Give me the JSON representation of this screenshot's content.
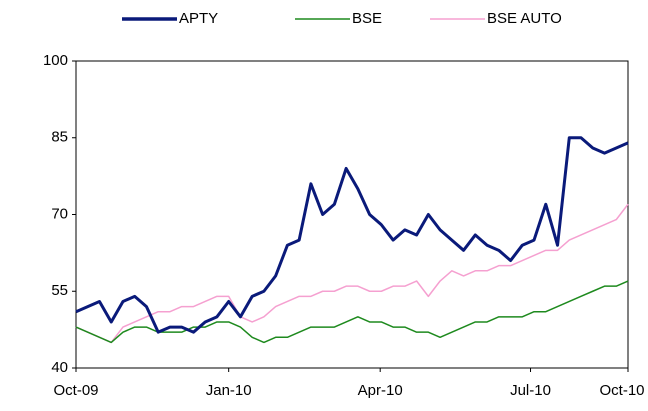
{
  "chart_data": {
    "type": "line",
    "x": [
      0,
      1,
      2,
      3,
      4,
      5,
      6,
      7,
      8,
      9,
      10,
      11,
      12,
      13,
      14,
      15,
      16,
      17,
      18,
      19,
      20,
      21,
      22,
      23,
      24,
      25,
      26,
      27,
      28,
      29,
      30,
      31,
      32,
      33,
      34,
      35,
      36,
      37,
      38,
      39,
      40,
      41,
      42,
      43,
      44,
      45,
      46,
      47
    ],
    "series": [
      {
        "name": "APTY",
        "color": "#0a1a7a",
        "values": [
          51,
          52,
          53,
          49,
          53,
          54,
          52,
          47,
          48,
          48,
          47,
          49,
          50,
          53,
          50,
          54,
          55,
          58,
          64,
          65,
          76,
          70,
          72,
          79,
          75,
          70,
          68,
          65,
          67,
          66,
          70,
          67,
          65,
          63,
          66,
          64,
          63,
          61,
          64,
          65,
          72,
          64,
          85,
          85,
          83,
          82,
          83,
          84
        ]
      },
      {
        "name": "BSE",
        "color": "#1e8a1e",
        "values": [
          48,
          47,
          46,
          45,
          47,
          48,
          48,
          47,
          47,
          47,
          48,
          48,
          49,
          49,
          48,
          46,
          45,
          46,
          46,
          47,
          48,
          48,
          48,
          49,
          50,
          49,
          49,
          48,
          48,
          47,
          47,
          46,
          47,
          48,
          49,
          49,
          50,
          50,
          50,
          51,
          51,
          52,
          53,
          54,
          55,
          56,
          56,
          57
        ]
      },
      {
        "name": "BSE AUTO",
        "color": "#f5a0d0",
        "values": [
          48,
          47,
          46,
          45,
          48,
          49,
          50,
          51,
          51,
          52,
          52,
          53,
          54,
          54,
          50,
          49,
          50,
          52,
          53,
          54,
          54,
          55,
          55,
          56,
          56,
          55,
          55,
          56,
          56,
          57,
          54,
          57,
          59,
          58,
          59,
          59,
          60,
          60,
          61,
          62,
          63,
          63,
          65,
          66,
          67,
          68,
          69,
          72
        ]
      }
    ],
    "xlim": [
      0,
      47
    ],
    "xticks": [
      {
        "value": 0,
        "label": "Oct-09"
      },
      {
        "value": 13,
        "label": "Jan-10"
      },
      {
        "value": 25.9,
        "label": "Apr-10"
      },
      {
        "value": 38.7,
        "label": "Jul-10"
      },
      {
        "value": 47,
        "label": "Oct-10"
      }
    ],
    "ylim": [
      40,
      100
    ],
    "yticks": [
      40,
      55,
      70,
      85,
      100
    ],
    "legend": "top"
  }
}
